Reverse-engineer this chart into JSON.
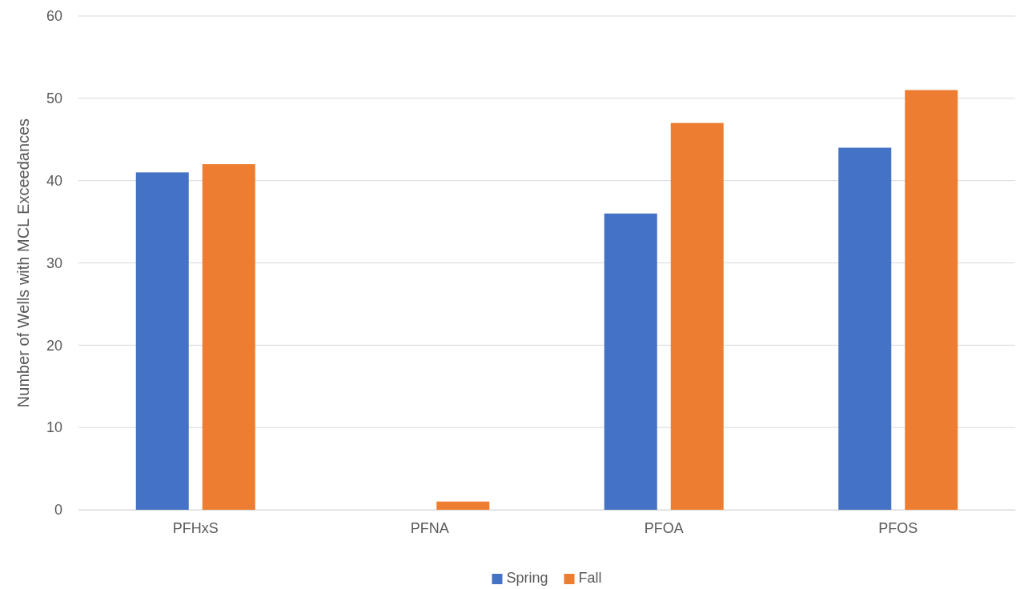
{
  "chart_data": {
    "type": "bar",
    "ylabel": "Number of Wells with MCL Exceedances",
    "categories": [
      "PFHxS",
      "PFNA",
      "PFOA",
      "PFOS"
    ],
    "series": [
      {
        "name": "Spring",
        "color": "#4472c4",
        "values": [
          41,
          0,
          36,
          44
        ]
      },
      {
        "name": "Fall",
        "color": "#ed7d31",
        "values": [
          42,
          1,
          47,
          51
        ]
      }
    ],
    "ylim": [
      0,
      60
    ],
    "yticks": [
      0,
      10,
      20,
      30,
      40,
      50,
      60
    ],
    "grid": "y",
    "legend": "bottom"
  }
}
